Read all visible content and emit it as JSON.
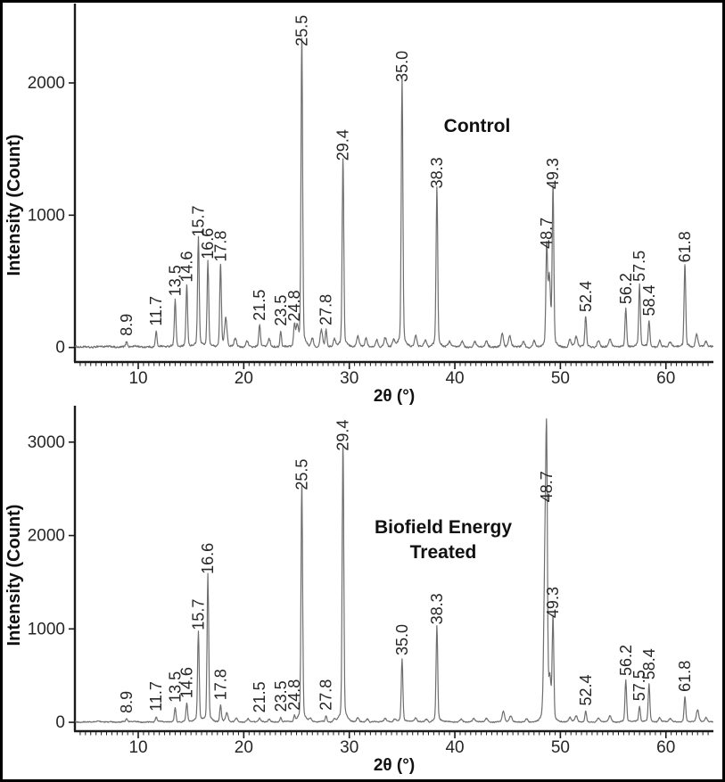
{
  "figure": {
    "background": "#ffffff",
    "border_color": "#000000",
    "trace_color": "#6e6e6e",
    "axis_color": "#1a1a1a",
    "text_color": "#262626"
  },
  "chart_data": [
    {
      "type": "line",
      "chart_kind": "XRD diffractogram",
      "annotation_lines": [
        "Control"
      ],
      "xlabel": "2θ (°)",
      "ylabel": "Intensity (Count)",
      "xlim": [
        4,
        64.5
      ],
      "ylim": [
        -110,
        2600
      ],
      "xticks": [
        10,
        20,
        30,
        40,
        50,
        60
      ],
      "minor_xtick_step": 0.5,
      "yticks": [
        0,
        1000,
        2000
      ],
      "grid": false,
      "legend": "none",
      "noise_level": 13,
      "peaks": [
        {
          "two_theta": 8.9,
          "intensity": 40,
          "label": "8.9"
        },
        {
          "two_theta": 11.7,
          "intensity": 115,
          "label": "11.7"
        },
        {
          "two_theta": 13.5,
          "intensity": 340,
          "label": "13.5"
        },
        {
          "two_theta": 14.6,
          "intensity": 445,
          "label": "14.6"
        },
        {
          "two_theta": 15.7,
          "intensity": 790,
          "label": "15.7"
        },
        {
          "two_theta": 16.6,
          "intensity": 620,
          "label": "16.6"
        },
        {
          "two_theta": 17.8,
          "intensity": 600,
          "label": "17.8"
        },
        {
          "two_theta": 21.5,
          "intensity": 155,
          "label": "21.5"
        },
        {
          "two_theta": 23.5,
          "intensity": 115,
          "label": "23.5"
        },
        {
          "two_theta": 24.8,
          "intensity": 150,
          "label": "24.8"
        },
        {
          "two_theta": 25.5,
          "intensity": 2230,
          "label": "25.5"
        },
        {
          "two_theta": 27.8,
          "intensity": 120,
          "label": "27.8"
        },
        {
          "two_theta": 29.4,
          "intensity": 1365,
          "label": "29.4"
        },
        {
          "two_theta": 35.0,
          "intensity": 1960,
          "label": "35.0"
        },
        {
          "two_theta": 38.3,
          "intensity": 1155,
          "label": "38.3"
        },
        {
          "two_theta": 48.7,
          "intensity": 700,
          "label": "48.7"
        },
        {
          "two_theta": 49.3,
          "intensity": 1150,
          "label": "49.3"
        },
        {
          "two_theta": 52.4,
          "intensity": 220,
          "label": "52.4"
        },
        {
          "two_theta": 56.2,
          "intensity": 280,
          "label": "56.2"
        },
        {
          "two_theta": 57.5,
          "intensity": 450,
          "label": "57.5"
        },
        {
          "two_theta": 58.4,
          "intensity": 190,
          "label": "58.4"
        },
        {
          "two_theta": 61.8,
          "intensity": 595,
          "label": "61.8"
        }
      ],
      "minor_features": [
        {
          "two_theta": 18.3,
          "intensity": 200
        },
        {
          "two_theta": 19.2,
          "intensity": 60
        },
        {
          "two_theta": 20.3,
          "intensity": 45
        },
        {
          "two_theta": 22.4,
          "intensity": 60
        },
        {
          "two_theta": 25.05,
          "intensity": 120
        },
        {
          "two_theta": 26.5,
          "intensity": 65
        },
        {
          "two_theta": 27.35,
          "intensity": 120
        },
        {
          "two_theta": 28.6,
          "intensity": 55
        },
        {
          "two_theta": 30.8,
          "intensity": 75
        },
        {
          "two_theta": 31.6,
          "intensity": 65
        },
        {
          "two_theta": 32.6,
          "intensity": 55
        },
        {
          "two_theta": 33.4,
          "intensity": 65
        },
        {
          "two_theta": 34.2,
          "intensity": 55
        },
        {
          "two_theta": 36.3,
          "intensity": 80
        },
        {
          "two_theta": 37.2,
          "intensity": 45
        },
        {
          "two_theta": 39.5,
          "intensity": 35
        },
        {
          "two_theta": 40.7,
          "intensity": 40
        },
        {
          "two_theta": 41.9,
          "intensity": 35
        },
        {
          "two_theta": 43.0,
          "intensity": 35
        },
        {
          "two_theta": 44.5,
          "intensity": 100
        },
        {
          "two_theta": 45.2,
          "intensity": 75
        },
        {
          "two_theta": 46.5,
          "intensity": 35
        },
        {
          "two_theta": 47.5,
          "intensity": 45
        },
        {
          "two_theta": 48.95,
          "intensity": 480
        },
        {
          "two_theta": 50.9,
          "intensity": 55
        },
        {
          "two_theta": 51.5,
          "intensity": 70
        },
        {
          "two_theta": 53.6,
          "intensity": 45
        },
        {
          "two_theta": 54.7,
          "intensity": 50
        },
        {
          "two_theta": 59.4,
          "intensity": 45
        },
        {
          "two_theta": 60.4,
          "intensity": 35
        },
        {
          "two_theta": 62.9,
          "intensity": 90
        },
        {
          "two_theta": 63.8,
          "intensity": 40
        }
      ]
    },
    {
      "type": "line",
      "chart_kind": "XRD diffractogram",
      "annotation_lines": [
        "Biofield Energy",
        "Treated"
      ],
      "xlabel": "2θ (°)",
      "ylabel": "Intensity (Count)",
      "xlim": [
        4,
        64.5
      ],
      "ylim": [
        -95,
        3390
      ],
      "xticks": [
        10,
        20,
        30,
        40,
        50,
        60
      ],
      "minor_xtick_step": 0.5,
      "yticks": [
        0,
        1000,
        2000,
        3000
      ],
      "grid": false,
      "legend": "none",
      "noise_level": 11,
      "peaks": [
        {
          "two_theta": 8.9,
          "intensity": 30,
          "label": "8.9"
        },
        {
          "two_theta": 11.7,
          "intensity": 50,
          "label": "11.7"
        },
        {
          "two_theta": 13.5,
          "intensity": 145,
          "label": "13.5"
        },
        {
          "two_theta": 14.6,
          "intensity": 190,
          "label": "14.6"
        },
        {
          "two_theta": 15.7,
          "intensity": 920,
          "label": "15.7"
        },
        {
          "two_theta": 16.6,
          "intensity": 1520,
          "label": "16.6"
        },
        {
          "two_theta": 17.8,
          "intensity": 170,
          "label": "17.8"
        },
        {
          "two_theta": 21.5,
          "intensity": 35,
          "label": "21.5"
        },
        {
          "two_theta": 23.5,
          "intensity": 45,
          "label": "23.5"
        },
        {
          "two_theta": 24.8,
          "intensity": 60,
          "label": "24.8"
        },
        {
          "two_theta": 25.5,
          "intensity": 2420,
          "label": "25.5"
        },
        {
          "two_theta": 27.8,
          "intensity": 60,
          "label": "27.8"
        },
        {
          "two_theta": 29.4,
          "intensity": 2840,
          "label": "29.4"
        },
        {
          "two_theta": 35.0,
          "intensity": 650,
          "label": "35.0"
        },
        {
          "two_theta": 38.3,
          "intensity": 980,
          "label": "38.3"
        },
        {
          "two_theta": 48.7,
          "intensity": 2290,
          "label": "48.7"
        },
        {
          "two_theta": 49.3,
          "intensity": 1050,
          "label": "49.3"
        },
        {
          "two_theta": 52.4,
          "intensity": 110,
          "label": "52.4"
        },
        {
          "two_theta": 56.2,
          "intensity": 430,
          "label": "56.2"
        },
        {
          "two_theta": 57.5,
          "intensity": 160,
          "label": "57.5"
        },
        {
          "two_theta": 58.4,
          "intensity": 390,
          "label": "58.4"
        },
        {
          "two_theta": 61.8,
          "intensity": 260,
          "label": "61.8"
        }
      ],
      "minor_features": [
        {
          "two_theta": 18.4,
          "intensity": 90
        },
        {
          "two_theta": 19.3,
          "intensity": 40
        },
        {
          "two_theta": 20.4,
          "intensity": 30
        },
        {
          "two_theta": 22.4,
          "intensity": 30
        },
        {
          "two_theta": 26.3,
          "intensity": 35
        },
        {
          "two_theta": 28.6,
          "intensity": 30
        },
        {
          "two_theta": 30.8,
          "intensity": 40
        },
        {
          "two_theta": 31.7,
          "intensity": 35
        },
        {
          "two_theta": 33.4,
          "intensity": 30
        },
        {
          "two_theta": 34.3,
          "intensity": 30
        },
        {
          "two_theta": 36.3,
          "intensity": 40
        },
        {
          "two_theta": 37.3,
          "intensity": 30
        },
        {
          "two_theta": 40.6,
          "intensity": 30
        },
        {
          "two_theta": 41.8,
          "intensity": 30
        },
        {
          "two_theta": 43.0,
          "intensity": 35
        },
        {
          "two_theta": 44.6,
          "intensity": 110
        },
        {
          "two_theta": 45.3,
          "intensity": 55
        },
        {
          "two_theta": 46.8,
          "intensity": 35
        },
        {
          "two_theta": 48.55,
          "intensity": 1700
        },
        {
          "two_theta": 49.0,
          "intensity": 380
        },
        {
          "two_theta": 50.9,
          "intensity": 45
        },
        {
          "two_theta": 51.5,
          "intensity": 60
        },
        {
          "two_theta": 53.6,
          "intensity": 35
        },
        {
          "two_theta": 54.7,
          "intensity": 60
        },
        {
          "two_theta": 59.4,
          "intensity": 40
        },
        {
          "two_theta": 60.4,
          "intensity": 30
        },
        {
          "two_theta": 63.0,
          "intensity": 120
        },
        {
          "two_theta": 63.8,
          "intensity": 45
        }
      ]
    }
  ]
}
